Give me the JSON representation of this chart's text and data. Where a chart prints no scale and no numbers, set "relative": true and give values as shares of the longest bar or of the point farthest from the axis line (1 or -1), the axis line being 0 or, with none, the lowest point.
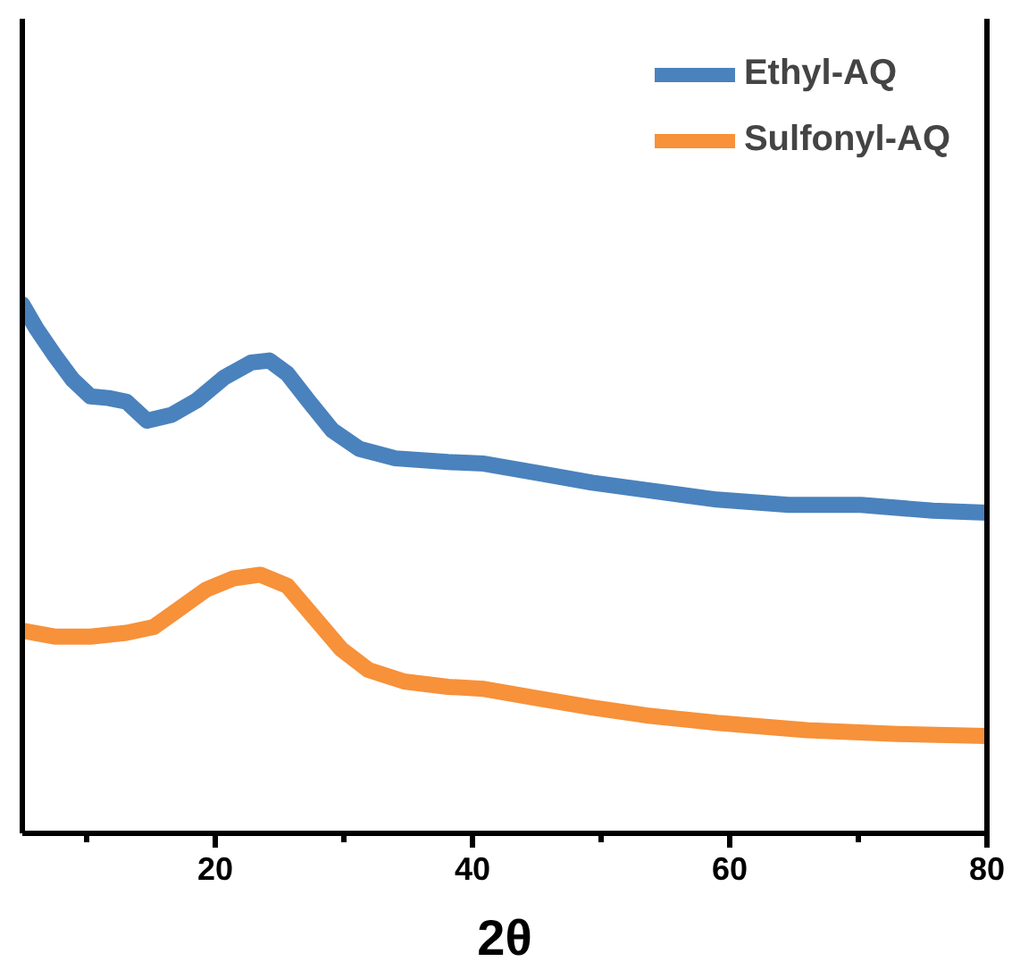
{
  "chart_data": {
    "type": "line",
    "relative": true,
    "xlabel": "2θ",
    "xlim": [
      5,
      80
    ],
    "xticks": [
      {
        "value": 10,
        "label": null
      },
      20,
      {
        "value": 30,
        "label": null
      },
      40,
      {
        "value": 50,
        "label": null
      },
      60,
      {
        "value": 70,
        "label": null
      },
      80
    ],
    "grid": false,
    "legend": "top right",
    "marker": "none",
    "line_style": "solid",
    "series": [
      {
        "name": "Ethyl-AQ",
        "color": "#4a82bd",
        "x": [
          5,
          6.1,
          7.5,
          8.9,
          10.3,
          11.7,
          13.1,
          14.7,
          16.6,
          18.6,
          20.7,
          22.8,
          24.2,
          25.6,
          27.3,
          29.1,
          31.2,
          34.0,
          38.1,
          40.9,
          45.1,
          49.3,
          53.5,
          59.0,
          64.6,
          70.2,
          75.8,
          80
        ],
        "values": [
          1.0,
          0.954,
          0.904,
          0.858,
          0.826,
          0.823,
          0.816,
          0.78,
          0.791,
          0.819,
          0.862,
          0.89,
          0.894,
          0.869,
          0.816,
          0.762,
          0.727,
          0.709,
          0.702,
          0.699,
          0.681,
          0.663,
          0.649,
          0.631,
          0.621,
          0.621,
          0.61,
          0.606
        ]
      },
      {
        "name": "Sulfonyl-AQ",
        "color": "#f7913a",
        "x": [
          5,
          7.5,
          10.3,
          13.1,
          15.2,
          17.3,
          19.3,
          21.4,
          23.5,
          25.6,
          27.7,
          29.8,
          31.9,
          34.7,
          38.1,
          40.9,
          45.1,
          49.3,
          53.5,
          59.0,
          66.0,
          73.0,
          80
        ],
        "values": [
          0.383,
          0.372,
          0.372,
          0.379,
          0.39,
          0.426,
          0.461,
          0.482,
          0.489,
          0.468,
          0.408,
          0.348,
          0.309,
          0.287,
          0.277,
          0.273,
          0.255,
          0.238,
          0.223,
          0.209,
          0.195,
          0.188,
          0.184
        ]
      }
    ]
  }
}
